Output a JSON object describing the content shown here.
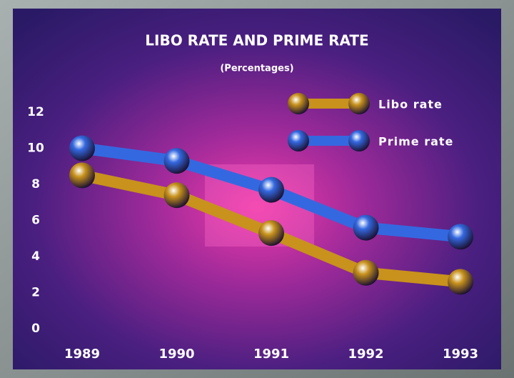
{
  "chart_data": {
    "type": "line",
    "title": "LIBO RATE AND PRIME RATE",
    "subtitle": "(Percentages)",
    "categories": [
      "1989",
      "1990",
      "1991",
      "1992",
      "1993"
    ],
    "series": [
      {
        "name": "Libo rate",
        "color": "#c8921c",
        "values": [
          8.5,
          7.4,
          5.3,
          3.1,
          2.6
        ]
      },
      {
        "name": "Prime rate",
        "color": "#3468e0",
        "values": [
          10.0,
          9.3,
          7.7,
          5.6,
          5.1
        ]
      }
    ],
    "ylim": [
      0,
      12
    ],
    "yticks": [
      0,
      2,
      4,
      6,
      8,
      10,
      12
    ],
    "grid": false,
    "legend": "top-right"
  }
}
